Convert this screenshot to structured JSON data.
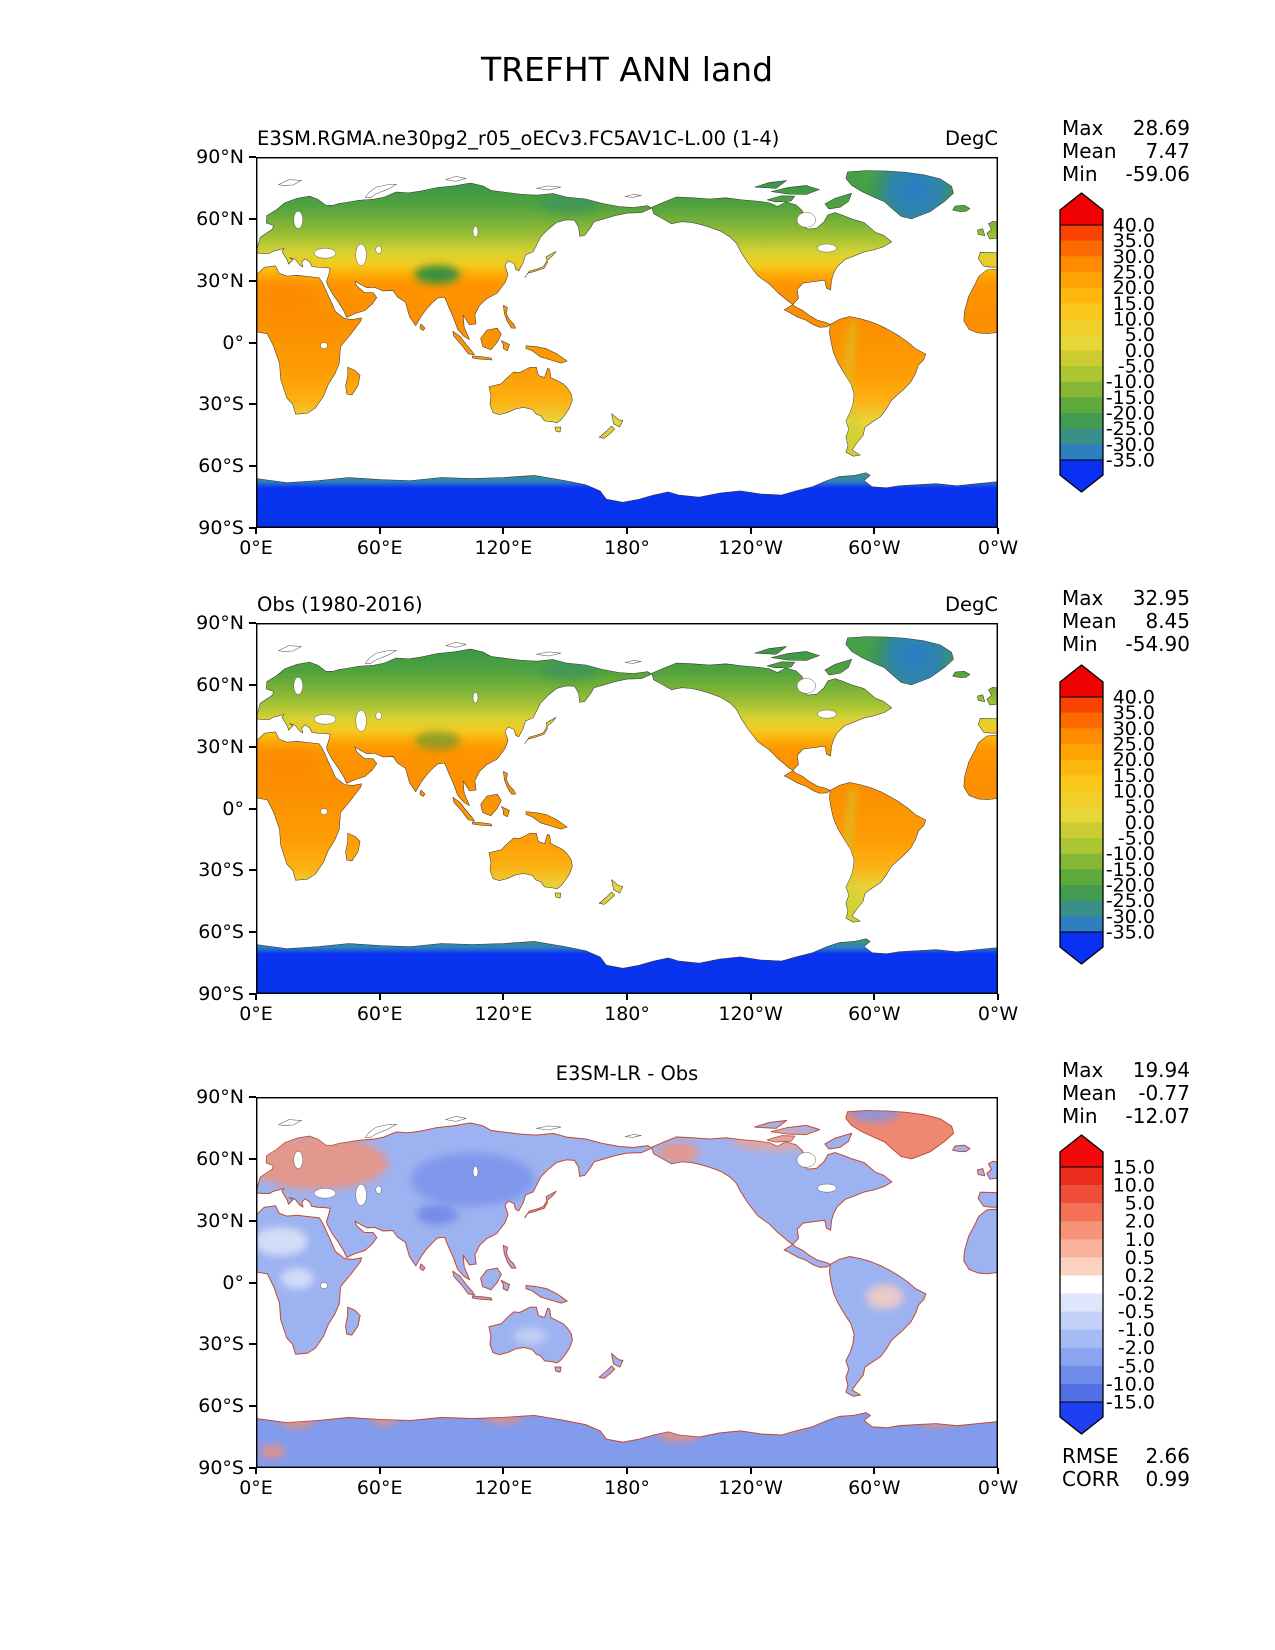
{
  "figure": {
    "title": "TREFHT ANN land",
    "background": "#ffffff"
  },
  "chart_data": [
    {
      "type": "heatmap",
      "subtype": "global-land-map",
      "projection": "equirectangular, longitude axis 0°E → 0°W centered on 180°, ocean shown white",
      "title": "E3SM.RGMA.ne30pg2_r05_oECv3.FC5AV1C-L.00 (1-4)",
      "units": "DegC",
      "title_align": "left",
      "stats": [
        {
          "label": "Max",
          "value": "28.69"
        },
        {
          "label": "Mean",
          "value": "7.47"
        },
        {
          "label": "Min",
          "value": "-59.06"
        }
      ],
      "x_tick_labels": [
        "0°E",
        "60°E",
        "120°E",
        "180°",
        "120°W",
        "60°W",
        "0°W"
      ],
      "y_tick_labels": [
        "90°N",
        "60°N",
        "30°N",
        "0°",
        "30°S",
        "60°S",
        "90°S"
      ],
      "colorbar": {
        "tick_labels": [
          "40.0",
          "35.0",
          "30.0",
          "25.0",
          "20.0",
          "15.0",
          "10.0",
          "5.0",
          "0.0",
          "-5.0",
          "-10.0",
          "-15.0",
          "-20.0",
          "-25.0",
          "-30.0",
          "-35.0"
        ],
        "band_colors_top_to_bottom": [
          "#f94300",
          "#fd6a00",
          "#fe8b00",
          "#fea303",
          "#fdb70d",
          "#fbc71d",
          "#f2cf2a",
          "#e6d636",
          "#cccd33",
          "#abc533",
          "#87b737",
          "#5ea93c",
          "#429b51",
          "#3a9089",
          "#2e7fc0"
        ],
        "over_color": "#f10202",
        "under_color": "#0a31f3"
      },
      "theme": "absolute"
    },
    {
      "type": "heatmap",
      "subtype": "global-land-map",
      "projection": "equirectangular, longitude axis 0°E → 0°W centered on 180°, ocean shown white",
      "title": "Obs (1980-2016)",
      "units": "DegC",
      "title_align": "left",
      "stats": [
        {
          "label": "Max",
          "value": "32.95"
        },
        {
          "label": "Mean",
          "value": "8.45"
        },
        {
          "label": "Min",
          "value": "-54.90"
        }
      ],
      "x_tick_labels": [
        "0°E",
        "60°E",
        "120°E",
        "180°",
        "120°W",
        "60°W",
        "0°W"
      ],
      "y_tick_labels": [
        "90°N",
        "60°N",
        "30°N",
        "0°",
        "30°S",
        "60°S",
        "90°S"
      ],
      "colorbar": {
        "tick_labels": [
          "40.0",
          "35.0",
          "30.0",
          "25.0",
          "20.0",
          "15.0",
          "10.0",
          "5.0",
          "0.0",
          "-5.0",
          "-10.0",
          "-15.0",
          "-20.0",
          "-25.0",
          "-30.0",
          "-35.0"
        ],
        "band_colors_top_to_bottom": [
          "#f94300",
          "#fd6a00",
          "#fe8b00",
          "#fea303",
          "#fdb70d",
          "#fbc71d",
          "#f2cf2a",
          "#e6d636",
          "#cccd33",
          "#abc533",
          "#87b737",
          "#5ea93c",
          "#429b51",
          "#3a9089",
          "#2e7fc0"
        ],
        "over_color": "#f10202",
        "under_color": "#0a31f3"
      },
      "theme": "absolute"
    },
    {
      "type": "heatmap",
      "subtype": "global-land-difference-map",
      "projection": "equirectangular, longitude axis 0°E → 0°W centered on 180°, ocean shown white",
      "title": "E3SM-LR - Obs",
      "units": "",
      "title_align": "center",
      "stats": [
        {
          "label": "Max",
          "value": "19.94"
        },
        {
          "label": "Mean",
          "value": "-0.77"
        },
        {
          "label": "Min",
          "value": "-12.07"
        }
      ],
      "extra_stats": [
        {
          "label": "RMSE",
          "value": "2.66"
        },
        {
          "label": "CORR",
          "value": "0.99"
        }
      ],
      "x_tick_labels": [
        "0°E",
        "60°E",
        "120°E",
        "180°",
        "120°W",
        "60°W",
        "0°W"
      ],
      "y_tick_labels": [
        "90°N",
        "60°N",
        "30°N",
        "0°",
        "30°S",
        "60°S",
        "90°S"
      ],
      "colorbar": {
        "tick_labels": [
          "15.0",
          "10.0",
          "5.0",
          "2.0",
          "1.0",
          "0.5",
          "0.2",
          "-0.2",
          "-0.5",
          "-1.0",
          "-2.0",
          "-5.0",
          "-10.0",
          "-15.0"
        ],
        "band_colors_top_to_bottom": [
          "#ec2c1c",
          "#ef4f3a",
          "#f37257",
          "#f69379",
          "#f9b29c",
          "#fcd2c2",
          "#ffffff",
          "#dee6fb",
          "#c3d1f8",
          "#a6bcf4",
          "#8aa4ef",
          "#6f8cea",
          "#5270e4"
        ],
        "over_color": "#f00a0a",
        "under_color": "#1e3ff2"
      },
      "theme": "diff"
    }
  ]
}
